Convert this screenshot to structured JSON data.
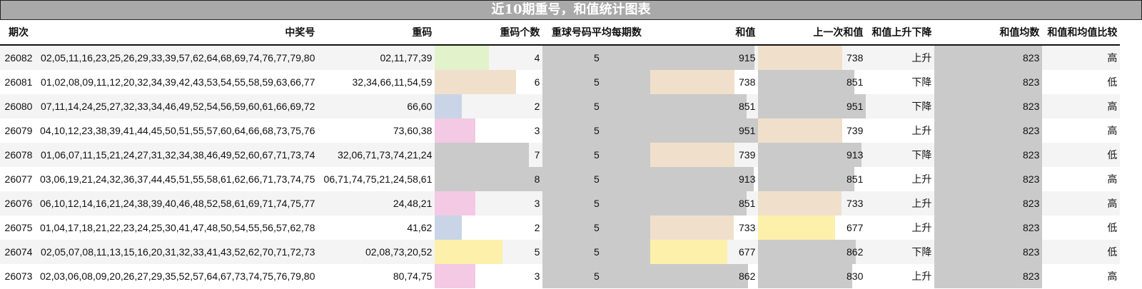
{
  "title": "近10期重号，和值统计图表",
  "headers": [
    "期次",
    "中奖号",
    "重码",
    "重码个数",
    "重球号码平均每期数",
    "和值",
    "上一次和值",
    "和值上升下降",
    "和值均数",
    "和值和均值比较"
  ],
  "colors": {
    "count_2": "#c9d5e6",
    "count_3": "#f3c9e3",
    "count_4": "#e2f3cb",
    "count_5": "#fdf0ab",
    "count_6": "#f0e0cb",
    "count_high": "#cacaca",
    "sum_low": "#fdf0ab",
    "sum_mid": "#f0e0cb",
    "sum_high": "#cacaca",
    "title_bg": "#a9a9a9"
  },
  "rows": [
    {
      "period": "26082",
      "numbers": "02,05,11,16,23,25,26,29,33,39,57,62,64,68,69,74,76,77,79,80",
      "repeat": "02,11,77,39",
      "count": 4,
      "avg": 5,
      "sum": 915,
      "prev_sum": 738,
      "trend": "上升",
      "mean": 823,
      "compare": "高"
    },
    {
      "period": "26081",
      "numbers": "01,02,08,09,11,12,20,32,34,39,42,43,53,54,55,58,59,63,66,77",
      "repeat": "32,34,66,11,54,59",
      "count": 6,
      "avg": 5,
      "sum": 738,
      "prev_sum": 851,
      "trend": "下降",
      "mean": 823,
      "compare": "低"
    },
    {
      "period": "26080",
      "numbers": "07,11,14,24,25,27,32,33,34,46,49,52,54,56,59,60,61,66,69,72",
      "repeat": "66,60",
      "count": 2,
      "avg": 5,
      "sum": 851,
      "prev_sum": 951,
      "trend": "下降",
      "mean": 823,
      "compare": "高"
    },
    {
      "period": "26079",
      "numbers": "04,10,12,23,38,39,41,44,45,50,51,55,57,60,64,66,68,73,75,76",
      "repeat": "73,60,38",
      "count": 3,
      "avg": 5,
      "sum": 951,
      "prev_sum": 739,
      "trend": "上升",
      "mean": 823,
      "compare": "高"
    },
    {
      "period": "26078",
      "numbers": "01,06,07,11,15,21,24,27,31,32,34,38,46,49,52,60,67,71,73,74",
      "repeat": "32,06,71,73,74,21,24",
      "count": 7,
      "avg": 5,
      "sum": 739,
      "prev_sum": 913,
      "trend": "下降",
      "mean": 823,
      "compare": "低"
    },
    {
      "period": "26077",
      "numbers": "03,06,19,21,24,32,36,37,44,45,51,55,58,61,62,66,71,73,74,75",
      "repeat": "06,71,74,75,21,24,58,61",
      "count": 8,
      "avg": 5,
      "sum": 913,
      "prev_sum": 851,
      "trend": "上升",
      "mean": 823,
      "compare": "高"
    },
    {
      "period": "26076",
      "numbers": "06,10,12,14,16,21,24,38,39,40,46,48,52,58,61,69,71,74,75,77",
      "repeat": "24,48,21",
      "count": 3,
      "avg": 5,
      "sum": 851,
      "prev_sum": 733,
      "trend": "上升",
      "mean": 823,
      "compare": "高"
    },
    {
      "period": "26075",
      "numbers": "01,04,17,18,21,22,23,24,25,30,41,47,48,50,54,55,56,57,62,78",
      "repeat": "41,62",
      "count": 2,
      "avg": 5,
      "sum": 733,
      "prev_sum": 677,
      "trend": "上升",
      "mean": 823,
      "compare": "低"
    },
    {
      "period": "26074",
      "numbers": "02,05,07,08,11,13,15,16,20,31,32,33,41,43,52,62,70,71,72,73",
      "repeat": "02,08,73,20,52",
      "count": 5,
      "avg": 5,
      "sum": 677,
      "prev_sum": 862,
      "trend": "下降",
      "mean": 823,
      "compare": "低"
    },
    {
      "period": "26073",
      "numbers": "02,03,06,08,09,20,26,27,29,35,52,57,64,67,73,74,75,76,79,80",
      "repeat": "80,74,75",
      "count": 3,
      "avg": 5,
      "sum": 862,
      "prev_sum": 830,
      "trend": "上升",
      "mean": 823,
      "compare": "高"
    }
  ]
}
